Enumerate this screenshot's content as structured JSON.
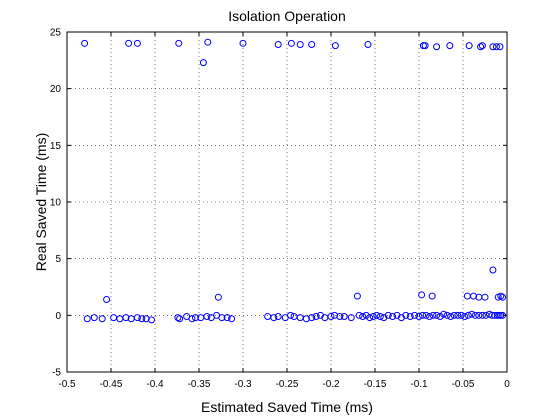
{
  "chart_data": {
    "type": "scatter",
    "title": "Isolation Operation",
    "xlabel": "Estimated Saved Time (ms)",
    "ylabel": "Real Saved Time (ms)",
    "xlim": [
      -0.5,
      0
    ],
    "ylim": [
      -5,
      25
    ],
    "xticks": [
      -0.5,
      -0.45,
      -0.4,
      -0.35,
      -0.3,
      -0.25,
      -0.2,
      -0.15,
      -0.1,
      -0.05,
      0
    ],
    "xtick_labels": [
      "-0.5",
      "-0.45",
      "-0.4",
      "-0.35",
      "-0.3",
      "-0.25",
      "-0.2",
      "-0.15",
      "-0.1",
      "-0.05",
      "0"
    ],
    "yticks": [
      -5,
      0,
      5,
      10,
      15,
      20,
      25
    ],
    "ytick_labels": [
      "-5",
      "0",
      "5",
      "10",
      "15",
      "20",
      "25"
    ],
    "grid": true,
    "marker": "circle-open",
    "color": "#0000ff",
    "series": [
      {
        "x": [
          -0.48,
          -0.43,
          -0.42,
          -0.373,
          -0.345,
          -0.34,
          -0.3,
          -0.26,
          -0.245,
          -0.235,
          -0.222,
          -0.195,
          -0.158,
          -0.095,
          -0.093,
          -0.08,
          -0.065,
          -0.043,
          -0.03,
          -0.028,
          -0.016,
          -0.012,
          -0.008,
          -0.455,
          -0.328,
          -0.17,
          -0.097,
          -0.085,
          -0.045,
          -0.038,
          -0.032,
          -0.025,
          -0.016,
          -0.01,
          -0.007,
          -0.005,
          -0.477,
          -0.469,
          -0.46,
          -0.447,
          -0.44,
          -0.433,
          -0.427,
          -0.42,
          -0.415,
          -0.41,
          -0.404,
          -0.374,
          -0.372,
          -0.364,
          -0.358,
          -0.354,
          -0.348,
          -0.341,
          -0.336,
          -0.33,
          -0.324,
          -0.318,
          -0.313,
          -0.272,
          -0.265,
          -0.26,
          -0.252,
          -0.246,
          -0.242,
          -0.235,
          -0.228,
          -0.222,
          -0.217,
          -0.212,
          -0.207,
          -0.2,
          -0.196,
          -0.19,
          -0.185,
          -0.177,
          -0.168,
          -0.164,
          -0.16,
          -0.156,
          -0.152,
          -0.148,
          -0.144,
          -0.14,
          -0.135,
          -0.13,
          -0.125,
          -0.12,
          -0.115,
          -0.11,
          -0.105,
          -0.1,
          -0.096,
          -0.092,
          -0.088,
          -0.084,
          -0.08,
          -0.076,
          -0.072,
          -0.068,
          -0.064,
          -0.06,
          -0.056,
          -0.052,
          -0.048,
          -0.044,
          -0.04,
          -0.036,
          -0.032,
          -0.028,
          -0.024,
          -0.02,
          -0.017,
          -0.014,
          -0.011,
          -0.009,
          -0.007,
          -0.005
        ],
        "y": [
          24,
          24,
          24,
          24,
          22.3,
          24.1,
          24,
          23.9,
          24,
          23.9,
          23.9,
          23.8,
          23.9,
          23.8,
          23.8,
          23.7,
          23.8,
          23.8,
          23.7,
          23.8,
          23.7,
          23.7,
          23.7,
          1.4,
          1.6,
          1.7,
          1.8,
          1.7,
          1.7,
          1.7,
          1.6,
          1.6,
          4,
          1.6,
          1.7,
          1.6,
          -0.3,
          -0.2,
          -0.3,
          -0.2,
          -0.3,
          -0.2,
          -0.3,
          -0.2,
          -0.3,
          -0.3,
          -0.4,
          -0.2,
          -0.3,
          -0.1,
          -0.3,
          -0.2,
          -0.2,
          -0.1,
          -0.2,
          0,
          -0.2,
          -0.2,
          -0.3,
          -0.1,
          -0.2,
          -0.1,
          -0.2,
          0,
          -0.1,
          -0.2,
          -0.3,
          -0.2,
          -0.1,
          0,
          -0.2,
          -0.1,
          0,
          -0.1,
          -0.1,
          -0.2,
          0,
          -0.1,
          0,
          -0.2,
          -0.1,
          0,
          -0.1,
          -0.2,
          0,
          -0.1,
          0,
          -0.2,
          0,
          -0.1,
          0,
          -0.1,
          0,
          0,
          -0.1,
          0,
          0,
          -0.1,
          0.1,
          0,
          -0.1,
          0,
          0,
          0,
          -0.1,
          0,
          0.1,
          0,
          0,
          0,
          0,
          0.1,
          0,
          0,
          0,
          0,
          0,
          0
        ]
      }
    ]
  }
}
